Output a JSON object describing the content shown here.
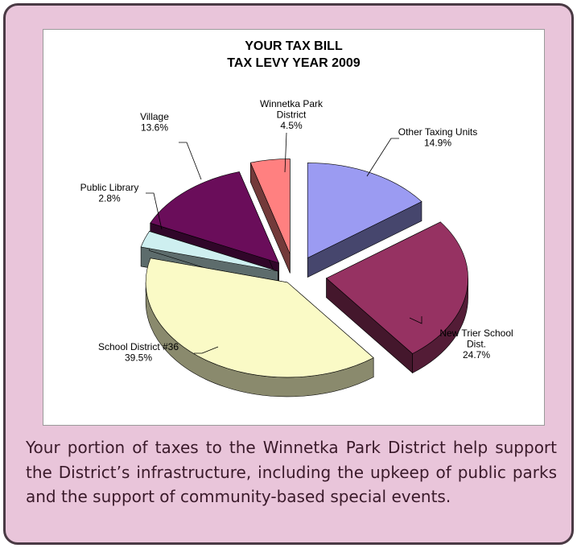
{
  "chart_data": {
    "type": "pie",
    "title": "YOUR TAX BILL",
    "subtitle": "TAX LEVY YEAR 2009",
    "slices": [
      {
        "label_lines": [
          "Other Taxing Units"
        ],
        "pct_label": "14.9%",
        "value": 14.9,
        "color": "#9b9bf2"
      },
      {
        "label_lines": [
          "New Trier School",
          "Dist."
        ],
        "pct_label": "24.7%",
        "value": 24.7,
        "color": "#963262"
      },
      {
        "label_lines": [
          "School District #36"
        ],
        "pct_label": "39.5%",
        "value": 39.5,
        "color": "#fafac6"
      },
      {
        "label_lines": [
          "Public Library"
        ],
        "pct_label": "2.8%",
        "value": 2.8,
        "color": "#ceeff0"
      },
      {
        "label_lines": [
          "Village"
        ],
        "pct_label": "13.6%",
        "value": 13.6,
        "color": "#6a0d5a"
      },
      {
        "label_lines": [
          "Winnetka Park",
          "District"
        ],
        "pct_label": "4.5%",
        "value": 4.5,
        "color": "#ff8080"
      }
    ]
  },
  "caption": "Your portion of taxes to the Winnetka Park District help support the District’s infrastructure, including the upkeep of public parks and the support of community-based special events."
}
